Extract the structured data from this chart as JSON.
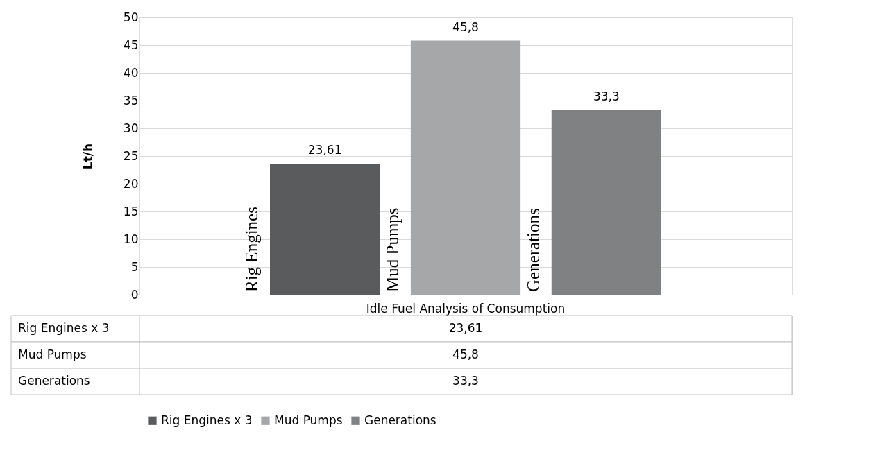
{
  "chart_data": {
    "type": "bar",
    "categories": [
      "Idle Fuel Analysis of Consumption"
    ],
    "ylabel": "Lt/h",
    "ylim": [
      0,
      50
    ],
    "yticks": [
      0,
      5,
      10,
      15,
      20,
      25,
      30,
      35,
      40,
      45,
      50
    ],
    "grid": "y",
    "legend": "bottom",
    "series": [
      {
        "name": "Rig Engines x 3",
        "color": "#595b5c",
        "values": [
          23.61
        ],
        "value_labels": [
          "23,61"
        ]
      },
      {
        "name": "Mud Pumps",
        "color": "#a5a7a8",
        "values": [
          45.8
        ],
        "value_labels": [
          "45,8"
        ]
      },
      {
        "name": "Generations",
        "color": "#7f8182",
        "values": [
          33.3
        ],
        "value_labels": [
          "33,3"
        ]
      }
    ],
    "annotations": [
      "Rig Engines",
      "Mud Pumps",
      "Generations"
    ]
  }
}
